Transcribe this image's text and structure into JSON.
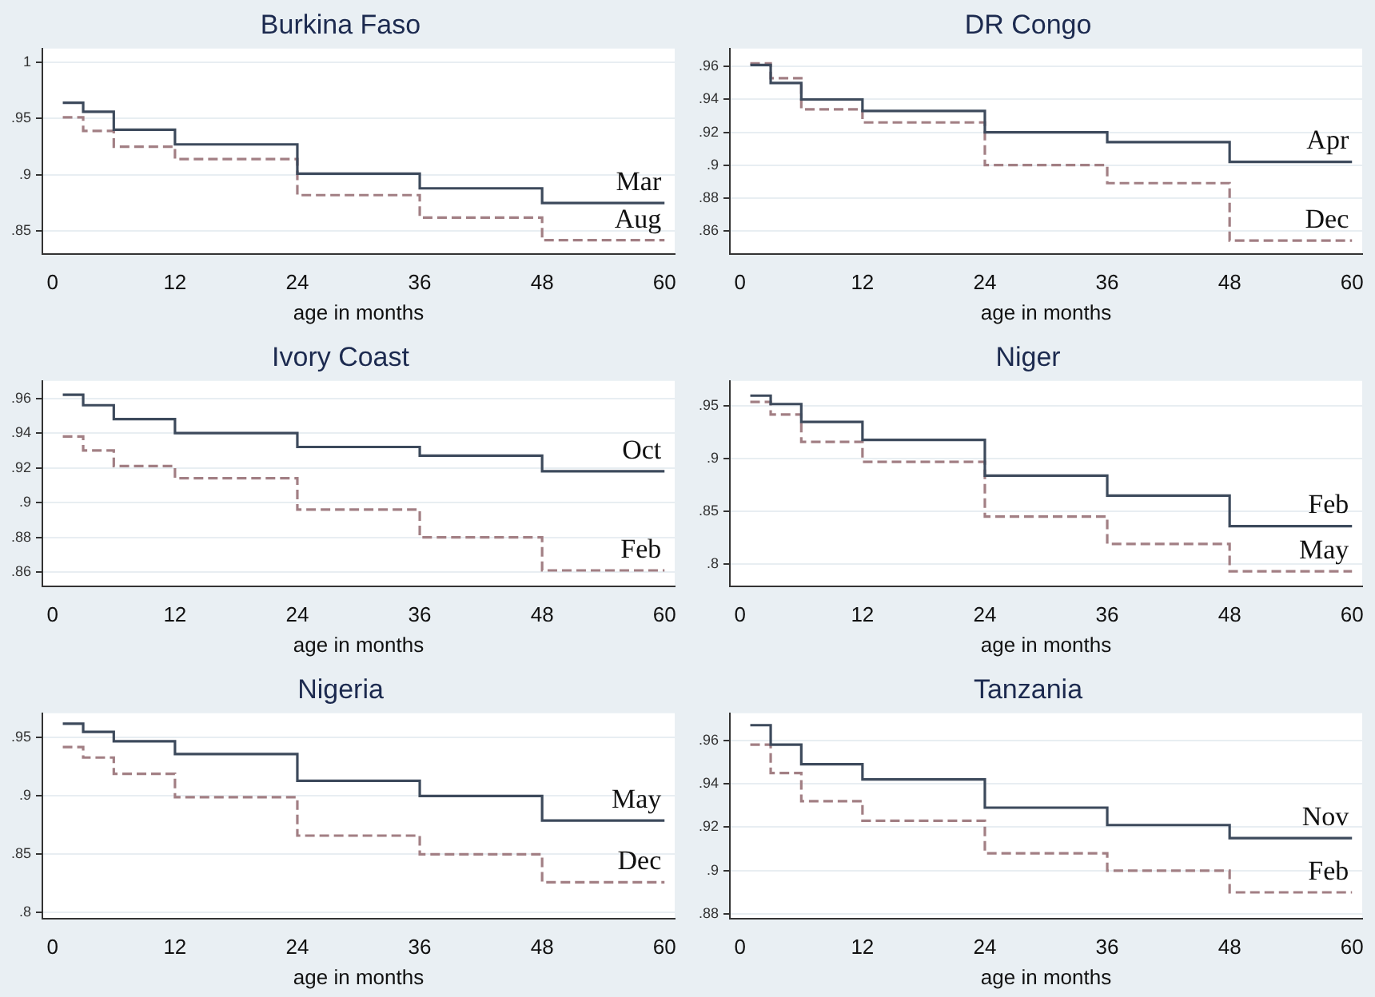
{
  "chart_data": [
    {
      "type": "step",
      "title": "Burkina Faso",
      "xlabel": "age in months",
      "x": [
        1,
        3,
        6,
        12,
        24,
        36,
        48,
        60
      ],
      "xlim": [
        -1,
        61
      ],
      "xticks": [
        0,
        12,
        24,
        36,
        48,
        60
      ],
      "ylim": [
        0.83,
        1.012
      ],
      "yticks": [
        {
          "value": 0.85,
          "label": ".85"
        },
        {
          "value": 0.9,
          "label": ".9"
        },
        {
          "value": 0.95,
          "label": ".95"
        },
        {
          "value": 1,
          "label": "1"
        }
      ],
      "grid": "y",
      "series": [
        {
          "name": "Mar",
          "color": "#3d4a5c",
          "line_style": "solid",
          "values": [
            0.964,
            0.956,
            0.94,
            0.927,
            0.901,
            0.888,
            0.875,
            0.875
          ]
        },
        {
          "name": "Aug",
          "color": "#a27f84",
          "line_style": "dashed",
          "values": [
            0.951,
            0.939,
            0.925,
            0.914,
            0.882,
            0.862,
            0.842,
            0.842
          ]
        }
      ]
    },
    {
      "type": "step",
      "title": "DR Congo",
      "xlabel": "age in months",
      "x": [
        1,
        3,
        6,
        12,
        24,
        36,
        48,
        60
      ],
      "xlim": [
        -1,
        61
      ],
      "xticks": [
        0,
        12,
        24,
        36,
        48,
        60
      ],
      "ylim": [
        0.846,
        0.971
      ],
      "yticks": [
        {
          "value": 0.86,
          "label": ".86"
        },
        {
          "value": 0.88,
          "label": ".88"
        },
        {
          "value": 0.9,
          "label": ".9"
        },
        {
          "value": 0.92,
          "label": ".92"
        },
        {
          "value": 0.94,
          "label": ".94"
        },
        {
          "value": 0.96,
          "label": ".96"
        }
      ],
      "grid": "y",
      "series": [
        {
          "name": "Apr",
          "color": "#3d4a5c",
          "line_style": "solid",
          "values": [
            0.961,
            0.95,
            0.94,
            0.933,
            0.92,
            0.914,
            0.902,
            0.902
          ]
        },
        {
          "name": "Dec",
          "color": "#a27f84",
          "line_style": "dashed",
          "values": [
            0.962,
            0.953,
            0.934,
            0.926,
            0.9,
            0.889,
            0.854,
            0.854
          ]
        }
      ]
    },
    {
      "type": "step",
      "title": "Ivory Coast",
      "xlabel": "age in months",
      "x": [
        1,
        3,
        6,
        12,
        24,
        36,
        48,
        60
      ],
      "xlim": [
        -1,
        61
      ],
      "xticks": [
        0,
        12,
        24,
        36,
        48,
        60
      ],
      "ylim": [
        0.852,
        0.97
      ],
      "yticks": [
        {
          "value": 0.86,
          "label": ".86"
        },
        {
          "value": 0.88,
          "label": ".88"
        },
        {
          "value": 0.9,
          "label": ".9"
        },
        {
          "value": 0.92,
          "label": ".92"
        },
        {
          "value": 0.94,
          "label": ".94"
        },
        {
          "value": 0.96,
          "label": ".96"
        }
      ],
      "grid": "y",
      "series": [
        {
          "name": "Oct",
          "color": "#3d4a5c",
          "line_style": "solid",
          "values": [
            0.962,
            0.956,
            0.948,
            0.94,
            0.932,
            0.927,
            0.918,
            0.918
          ]
        },
        {
          "name": "Feb",
          "color": "#a27f84",
          "line_style": "dashed",
          "values": [
            0.938,
            0.93,
            0.921,
            0.914,
            0.896,
            0.88,
            0.861,
            0.861
          ]
        }
      ]
    },
    {
      "type": "step",
      "title": "Niger",
      "xlabel": "age in months",
      "x": [
        1,
        3,
        6,
        12,
        24,
        36,
        48,
        60
      ],
      "xlim": [
        -1,
        61
      ],
      "xticks": [
        0,
        12,
        24,
        36,
        48,
        60
      ],
      "ylim": [
        0.779,
        0.974
      ],
      "yticks": [
        {
          "value": 0.8,
          "label": ".8"
        },
        {
          "value": 0.85,
          "label": ".85"
        },
        {
          "value": 0.9,
          "label": ".9"
        },
        {
          "value": 0.95,
          "label": ".95"
        }
      ],
      "grid": "y",
      "series": [
        {
          "name": "Feb",
          "color": "#3d4a5c",
          "line_style": "solid",
          "values": [
            0.96,
            0.952,
            0.935,
            0.918,
            0.884,
            0.865,
            0.836,
            0.836
          ]
        },
        {
          "name": "May",
          "color": "#a27f84",
          "line_style": "dashed",
          "values": [
            0.954,
            0.942,
            0.916,
            0.897,
            0.845,
            0.819,
            0.793,
            0.793
          ]
        }
      ]
    },
    {
      "type": "step",
      "title": "Nigeria",
      "xlabel": "age in months",
      "x": [
        1,
        3,
        6,
        12,
        24,
        36,
        48,
        60
      ],
      "xlim": [
        -1,
        61
      ],
      "xticks": [
        0,
        12,
        24,
        36,
        48,
        60
      ],
      "ylim": [
        0.795,
        0.971
      ],
      "yticks": [
        {
          "value": 0.8,
          "label": ".8"
        },
        {
          "value": 0.85,
          "label": ".85"
        },
        {
          "value": 0.9,
          "label": ".9"
        },
        {
          "value": 0.95,
          "label": ".95"
        }
      ],
      "grid": "y",
      "series": [
        {
          "name": "May",
          "color": "#3d4a5c",
          "line_style": "solid",
          "values": [
            0.962,
            0.955,
            0.947,
            0.936,
            0.913,
            0.9,
            0.879,
            0.879
          ]
        },
        {
          "name": "Dec",
          "color": "#a27f84",
          "line_style": "dashed",
          "values": [
            0.942,
            0.933,
            0.919,
            0.899,
            0.866,
            0.85,
            0.826,
            0.826
          ]
        }
      ]
    },
    {
      "type": "step",
      "title": "Tanzania",
      "xlabel": "age in months",
      "x": [
        1,
        3,
        6,
        12,
        24,
        36,
        48,
        60
      ],
      "xlim": [
        -1,
        61
      ],
      "xticks": [
        0,
        12,
        24,
        36,
        48,
        60
      ],
      "ylim": [
        0.878,
        0.9725
      ],
      "yticks": [
        {
          "value": 0.88,
          "label": ".88"
        },
        {
          "value": 0.9,
          "label": ".9"
        },
        {
          "value": 0.92,
          "label": ".92"
        },
        {
          "value": 0.94,
          "label": ".94"
        },
        {
          "value": 0.96,
          "label": ".96"
        }
      ],
      "grid": "y",
      "series": [
        {
          "name": "Nov",
          "color": "#3d4a5c",
          "line_style": "solid",
          "values": [
            0.967,
            0.958,
            0.949,
            0.942,
            0.929,
            0.921,
            0.915,
            0.915
          ]
        },
        {
          "name": "Feb",
          "color": "#a27f84",
          "line_style": "dashed",
          "values": [
            0.958,
            0.945,
            0.932,
            0.923,
            0.908,
            0.9,
            0.89,
            0.89
          ]
        }
      ]
    }
  ]
}
